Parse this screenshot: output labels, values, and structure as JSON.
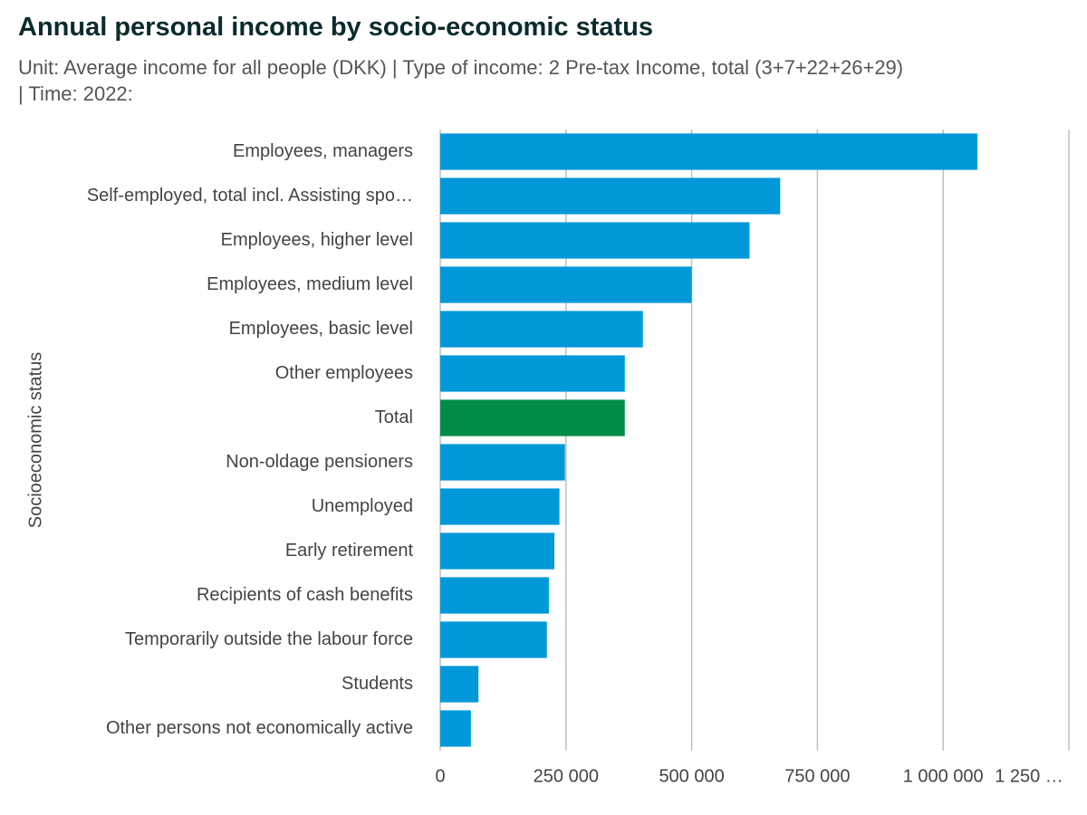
{
  "chart_data": {
    "type": "barh",
    "title": "Annual personal income by socio-economic status",
    "subtitle": "Unit: Average income for all people (DKK) | Type of income: 2 Pre-tax Income, total (3+7+22+26+29) | Time: 2022:",
    "ylabel": "Socioeconomic status",
    "categories": [
      "Employees, managers",
      "Self-employed, total incl. Assisting spo…",
      "Employees, higher level",
      "Employees, medium level",
      "Employees, basic level",
      "Other employees",
      "Total",
      "Non-oldage pensioners",
      "Unemployed",
      "Early retirement",
      "Recipients of cash benefits",
      "Temporarily outside the labour force",
      "Students",
      "Other persons not economically active"
    ],
    "values": [
      1068000,
      676000,
      615000,
      500000,
      403000,
      367000,
      367000,
      248000,
      237000,
      227000,
      216000,
      212000,
      76000,
      61000
    ],
    "colors": [
      "#0098d8",
      "#0098d8",
      "#0098d8",
      "#0098d8",
      "#0098d8",
      "#0098d8",
      "#008c46",
      "#0098d8",
      "#0098d8",
      "#0098d8",
      "#0098d8",
      "#0098d8",
      "#0098d8",
      "#0098d8"
    ],
    "xlim": [
      0,
      1250000
    ],
    "xticks": [
      0,
      {
        "value": 250000,
        "label": "250 000"
      },
      {
        "value": 500000,
        "label": "500 000"
      },
      {
        "value": 750000,
        "label": "750 000"
      },
      {
        "value": 1000000,
        "label": "1 000 000"
      },
      {
        "value": 1250000,
        "label": "1 250 …"
      }
    ],
    "grid": true
  }
}
